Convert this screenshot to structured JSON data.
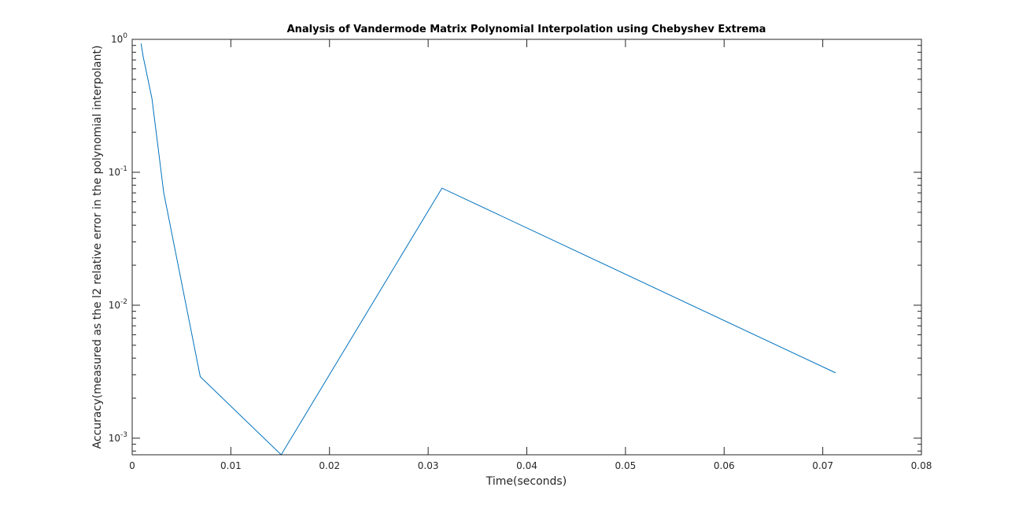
{
  "chart_data": {
    "type": "line",
    "title": "Analysis of Vandermode Matrix Polynomial Interpolation using Chebyshev Extrema",
    "xlabel": "Time(seconds)",
    "ylabel": "Accuracy(measured as the l2 relative error in the polynomial interpolant)",
    "xlim": [
      0,
      0.08
    ],
    "ylim": [
      0.00075,
      1
    ],
    "yscale": "log",
    "grid": false,
    "x_ticks": [
      "0",
      "0.01",
      "0.02",
      "0.03",
      "0.04",
      "0.05",
      "0.06",
      "0.07",
      "0.08"
    ],
    "y_ticks": [
      {
        "base": "10",
        "exp": "-3"
      },
      {
        "base": "10",
        "exp": "-2"
      },
      {
        "base": "10",
        "exp": "-1"
      },
      {
        "base": "10",
        "exp": "0"
      }
    ],
    "series": [
      {
        "color": "#0072bd",
        "x": [
          0.0009,
          0.0011,
          0.002,
          0.0032,
          0.0069,
          0.0151,
          0.0314,
          0.0713
        ],
        "y": [
          0.93,
          0.75,
          0.36,
          0.07,
          0.0029,
          0.00075,
          0.076,
          0.0031
        ]
      }
    ]
  }
}
